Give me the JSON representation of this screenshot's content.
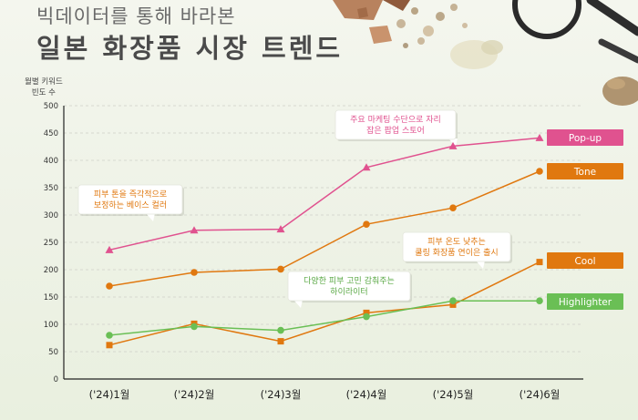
{
  "header": {
    "subtitle": "빅데이터를 통해 바라본",
    "title": "일본 화장품 시장 트렌드"
  },
  "chart_data": {
    "type": "line",
    "ylabel_line1": "월별 키워드",
    "ylabel_line2": "빈도 수",
    "categories": [
      "('24)1월",
      "('24)2월",
      "('24)3월",
      "('24)4월",
      "('24)5월",
      "('24)6월"
    ],
    "ylim": [
      0,
      500
    ],
    "yticks": [
      0,
      50,
      100,
      150,
      200,
      250,
      300,
      350,
      400,
      450,
      500
    ],
    "grid": true,
    "legend": "right, end-of-line labels",
    "series": [
      {
        "name": "Pop-up",
        "color": "#e0528f",
        "marker": "triangle",
        "values": [
          236,
          272,
          274,
          387,
          426,
          441
        ]
      },
      {
        "name": "Tone",
        "color": "#e0780f",
        "marker": "circle",
        "values": [
          170,
          195,
          201,
          283,
          313,
          380
        ]
      },
      {
        "name": "Cool",
        "color": "#e0780f",
        "marker": "square",
        "values": [
          62,
          101,
          69,
          121,
          136,
          214
        ]
      },
      {
        "name": "Highlighter",
        "color": "#6abf55",
        "marker": "circle",
        "values": [
          80,
          96,
          89,
          114,
          143,
          143
        ]
      }
    ],
    "annotations": [
      {
        "line1": "주요 마케팅 수단으로 자리",
        "line2": "잡은 팝업 스토어",
        "color": "#e0528f"
      },
      {
        "line1": "피부 톤을 즉각적으로",
        "line2": "보정하는 베이스 컬러",
        "color": "#e0780f"
      },
      {
        "line1": "피부 온도 낮추는",
        "line2": "쿨링 화장품 연이은 출시",
        "color": "#e0780f"
      },
      {
        "line1": "다양한 피부 고민 감춰주는",
        "line2": "하이라이터",
        "color": "#5aa845"
      }
    ]
  }
}
